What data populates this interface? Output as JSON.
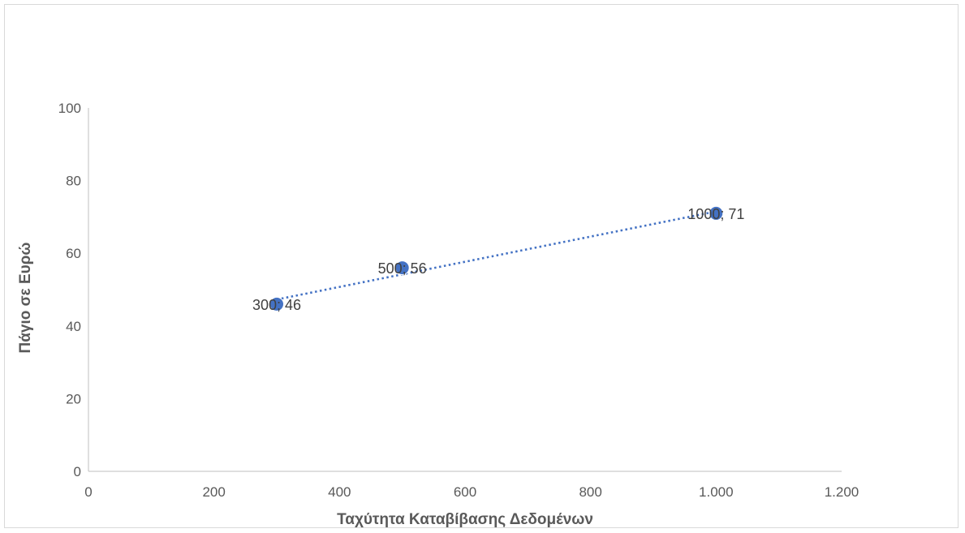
{
  "chart_data": {
    "type": "scatter",
    "title": "",
    "xlabel": "Ταχύτητα Καταβίβασης Δεδομένων",
    "ylabel": "Πάγιο σε Ευρώ",
    "xlim": [
      0,
      1200
    ],
    "ylim": [
      0,
      100
    ],
    "x_ticks": [
      0,
      200,
      400,
      600,
      800,
      1000,
      1200
    ],
    "x_tick_labels": [
      "0",
      "200",
      "400",
      "600",
      "800",
      "1.000",
      "1.200"
    ],
    "y_ticks": [
      0,
      20,
      40,
      60,
      80,
      100
    ],
    "y_tick_labels": [
      "0",
      "20",
      "40",
      "60",
      "80",
      "100"
    ],
    "grid": false,
    "legend": "none",
    "series": [
      {
        "x": [
          300,
          500,
          1000
        ],
        "y": [
          46,
          56,
          71
        ],
        "labels": [
          "300; 46",
          "500; 56",
          "1000; 71"
        ],
        "color": "#4472c4",
        "trendline": "linear dotted"
      }
    ]
  }
}
